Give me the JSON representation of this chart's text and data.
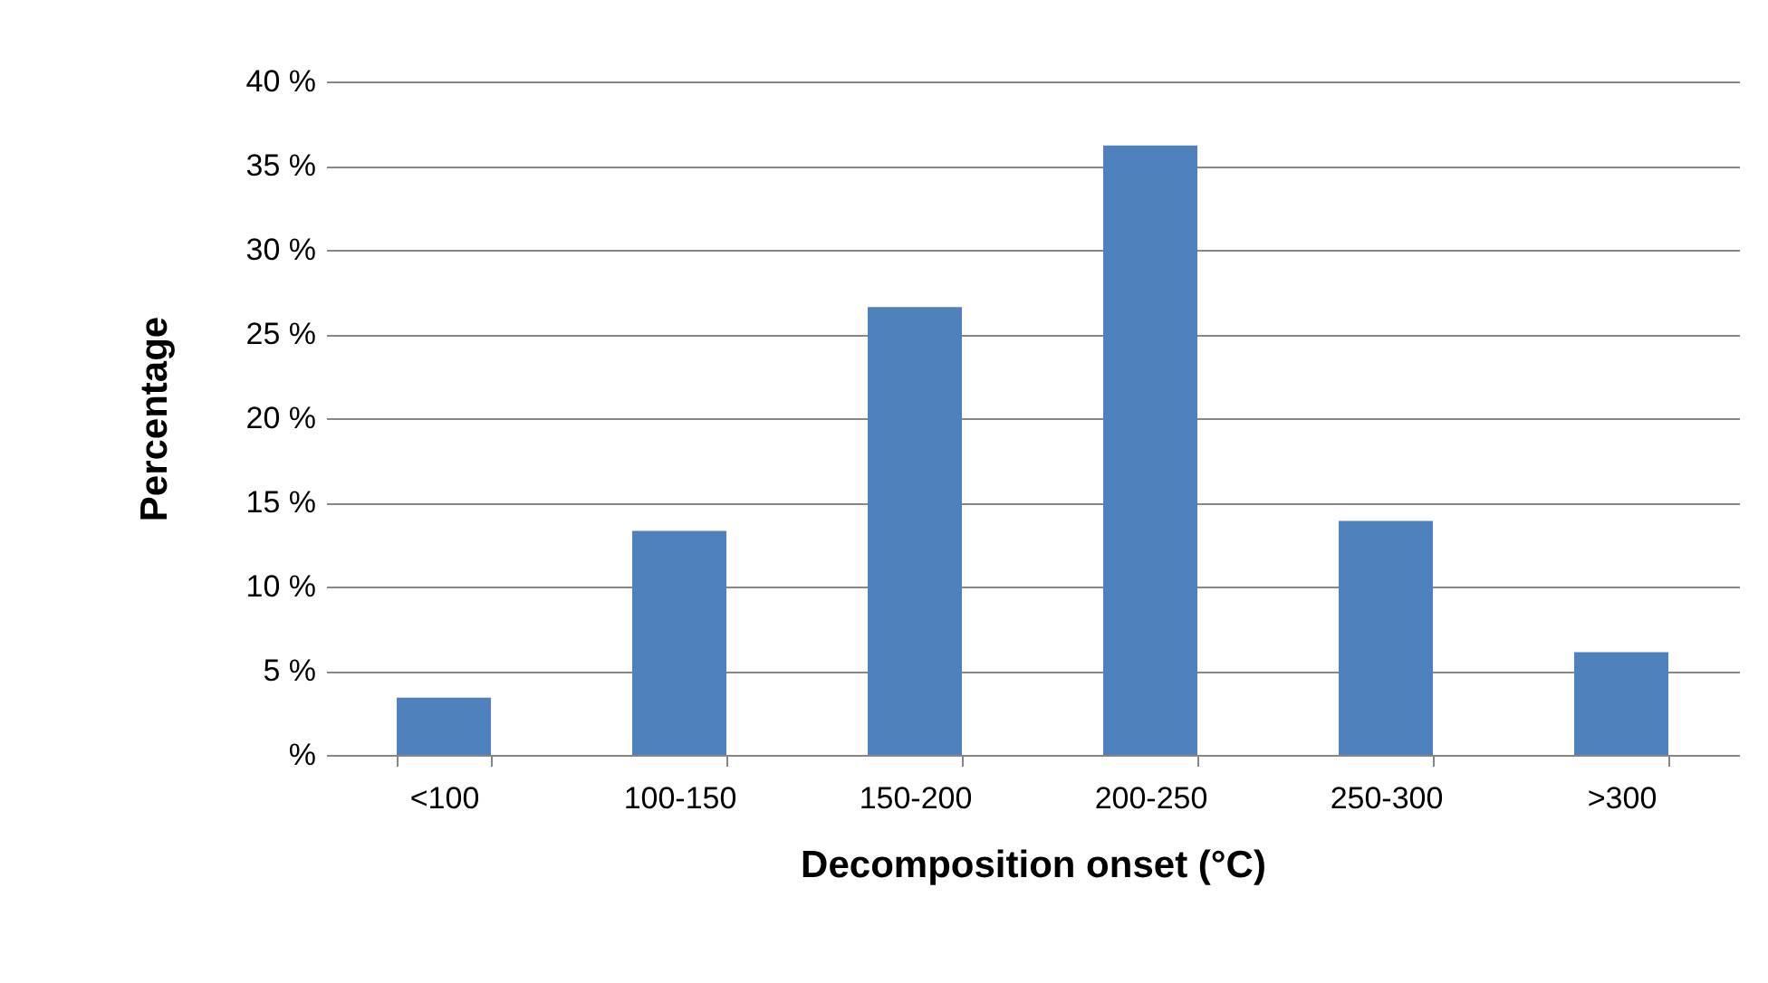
{
  "chart_data": {
    "type": "bar",
    "xlabel": "Decomposition onset (°C)",
    "ylabel": "Percentage",
    "categories": [
      "<100",
      "100-150",
      "150-200",
      "200-250",
      "250-300",
      ">300"
    ],
    "values": [
      3.4,
      13.3,
      26.6,
      36.2,
      13.9,
      6.1
    ],
    "color": "#4f81bd",
    "ylim": [
      0,
      40
    ],
    "yticks": [
      {
        "value": 0,
        "label": "%"
      },
      {
        "value": 5,
        "label": "5 %"
      },
      {
        "value": 10,
        "label": "10 %"
      },
      {
        "value": 15,
        "label": "15 %"
      },
      {
        "value": 20,
        "label": "20 %"
      },
      {
        "value": 25,
        "label": "25 %"
      },
      {
        "value": 30,
        "label": "30 %"
      },
      {
        "value": 35,
        "label": "35 %"
      },
      {
        "value": 40,
        "label": "40 %"
      }
    ],
    "grid": "y"
  }
}
